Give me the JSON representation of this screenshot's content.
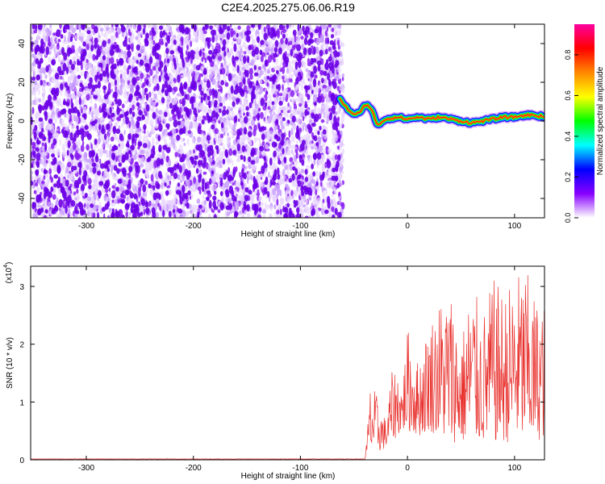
{
  "title": "C2E4.2025.275.06.06.R19",
  "chart_data": [
    {
      "type": "heatmap",
      "xlabel": "Height of straight line (km)",
      "ylabel": "Frequency (Hz)",
      "xlim": [
        -352,
        128
      ],
      "ylim": [
        -50,
        50
      ],
      "xticks": [
        -300,
        -200,
        -100,
        0,
        100
      ],
      "yticks": [
        -40,
        -20,
        0,
        20,
        40
      ],
      "noise_region_x": [
        -352,
        -63
      ],
      "signal_trace": {
        "x": [
          -63,
          -58,
          -53,
          -48,
          -43,
          -38,
          -33,
          -28,
          -20,
          -10,
          0,
          10,
          20,
          30,
          40,
          50,
          60,
          70,
          80,
          90,
          100,
          110,
          120,
          128
        ],
        "y": [
          11,
          8,
          4,
          3,
          6,
          9,
          5,
          -2,
          1,
          2,
          1,
          2,
          1,
          2,
          1,
          0,
          -1,
          0,
          1,
          2,
          2,
          3,
          3,
          2
        ],
        "peak_normalized_amplitude": 1.0
      },
      "colorbar": {
        "label": "Normalized spectral amplitude",
        "range": [
          0,
          0.95
        ],
        "ticks": [
          0.0,
          0.2,
          0.4,
          0.6,
          0.8
        ],
        "colors": [
          "#ffffff",
          "#8800ff",
          "#0000ff",
          "#00ffff",
          "#00ff00",
          "#ffff00",
          "#ff8800",
          "#ff0000",
          "#ff00a0"
        ]
      },
      "grid": false
    },
    {
      "type": "line",
      "xlabel": "Height of straight line (km)",
      "ylabel": "SNR (10 * v/v)",
      "y_multiplier": "(x10",
      "y_multiplier_exp": "4",
      "xlim": [
        -352,
        128
      ],
      "ylim": [
        0,
        3.35
      ],
      "xticks": [
        -300,
        -200,
        -100,
        0,
        100
      ],
      "yticks": [
        0,
        1,
        2,
        3
      ],
      "series_color": "#e8322e",
      "noise_floor_value": 0.01,
      "envelope": {
        "x": [
          -352,
          -40,
          -38,
          -35,
          -30,
          -25,
          -20,
          -15,
          -10,
          -5,
          0,
          10,
          20,
          30,
          40,
          50,
          60,
          70,
          80,
          90,
          100,
          110,
          120,
          128
        ],
        "upper": [
          0.01,
          0.03,
          0.35,
          1.3,
          1.2,
          0.9,
          0.7,
          1.5,
          1.65,
          1.3,
          2.3,
          1.7,
          2.4,
          2.8,
          3.0,
          2.1,
          3.1,
          2.5,
          3.15,
          2.9,
          3.2,
          3.35,
          2.8,
          2.7
        ],
        "lower": [
          0.0,
          0.0,
          0.05,
          0.1,
          0.15,
          0.15,
          0.2,
          0.3,
          0.4,
          0.5,
          0.5,
          0.4,
          0.5,
          0.4,
          0.3,
          0.3,
          0.3,
          0.3,
          0.3,
          0.3,
          0.3,
          0.3,
          0.3,
          0.4
        ]
      },
      "grid": false
    }
  ]
}
